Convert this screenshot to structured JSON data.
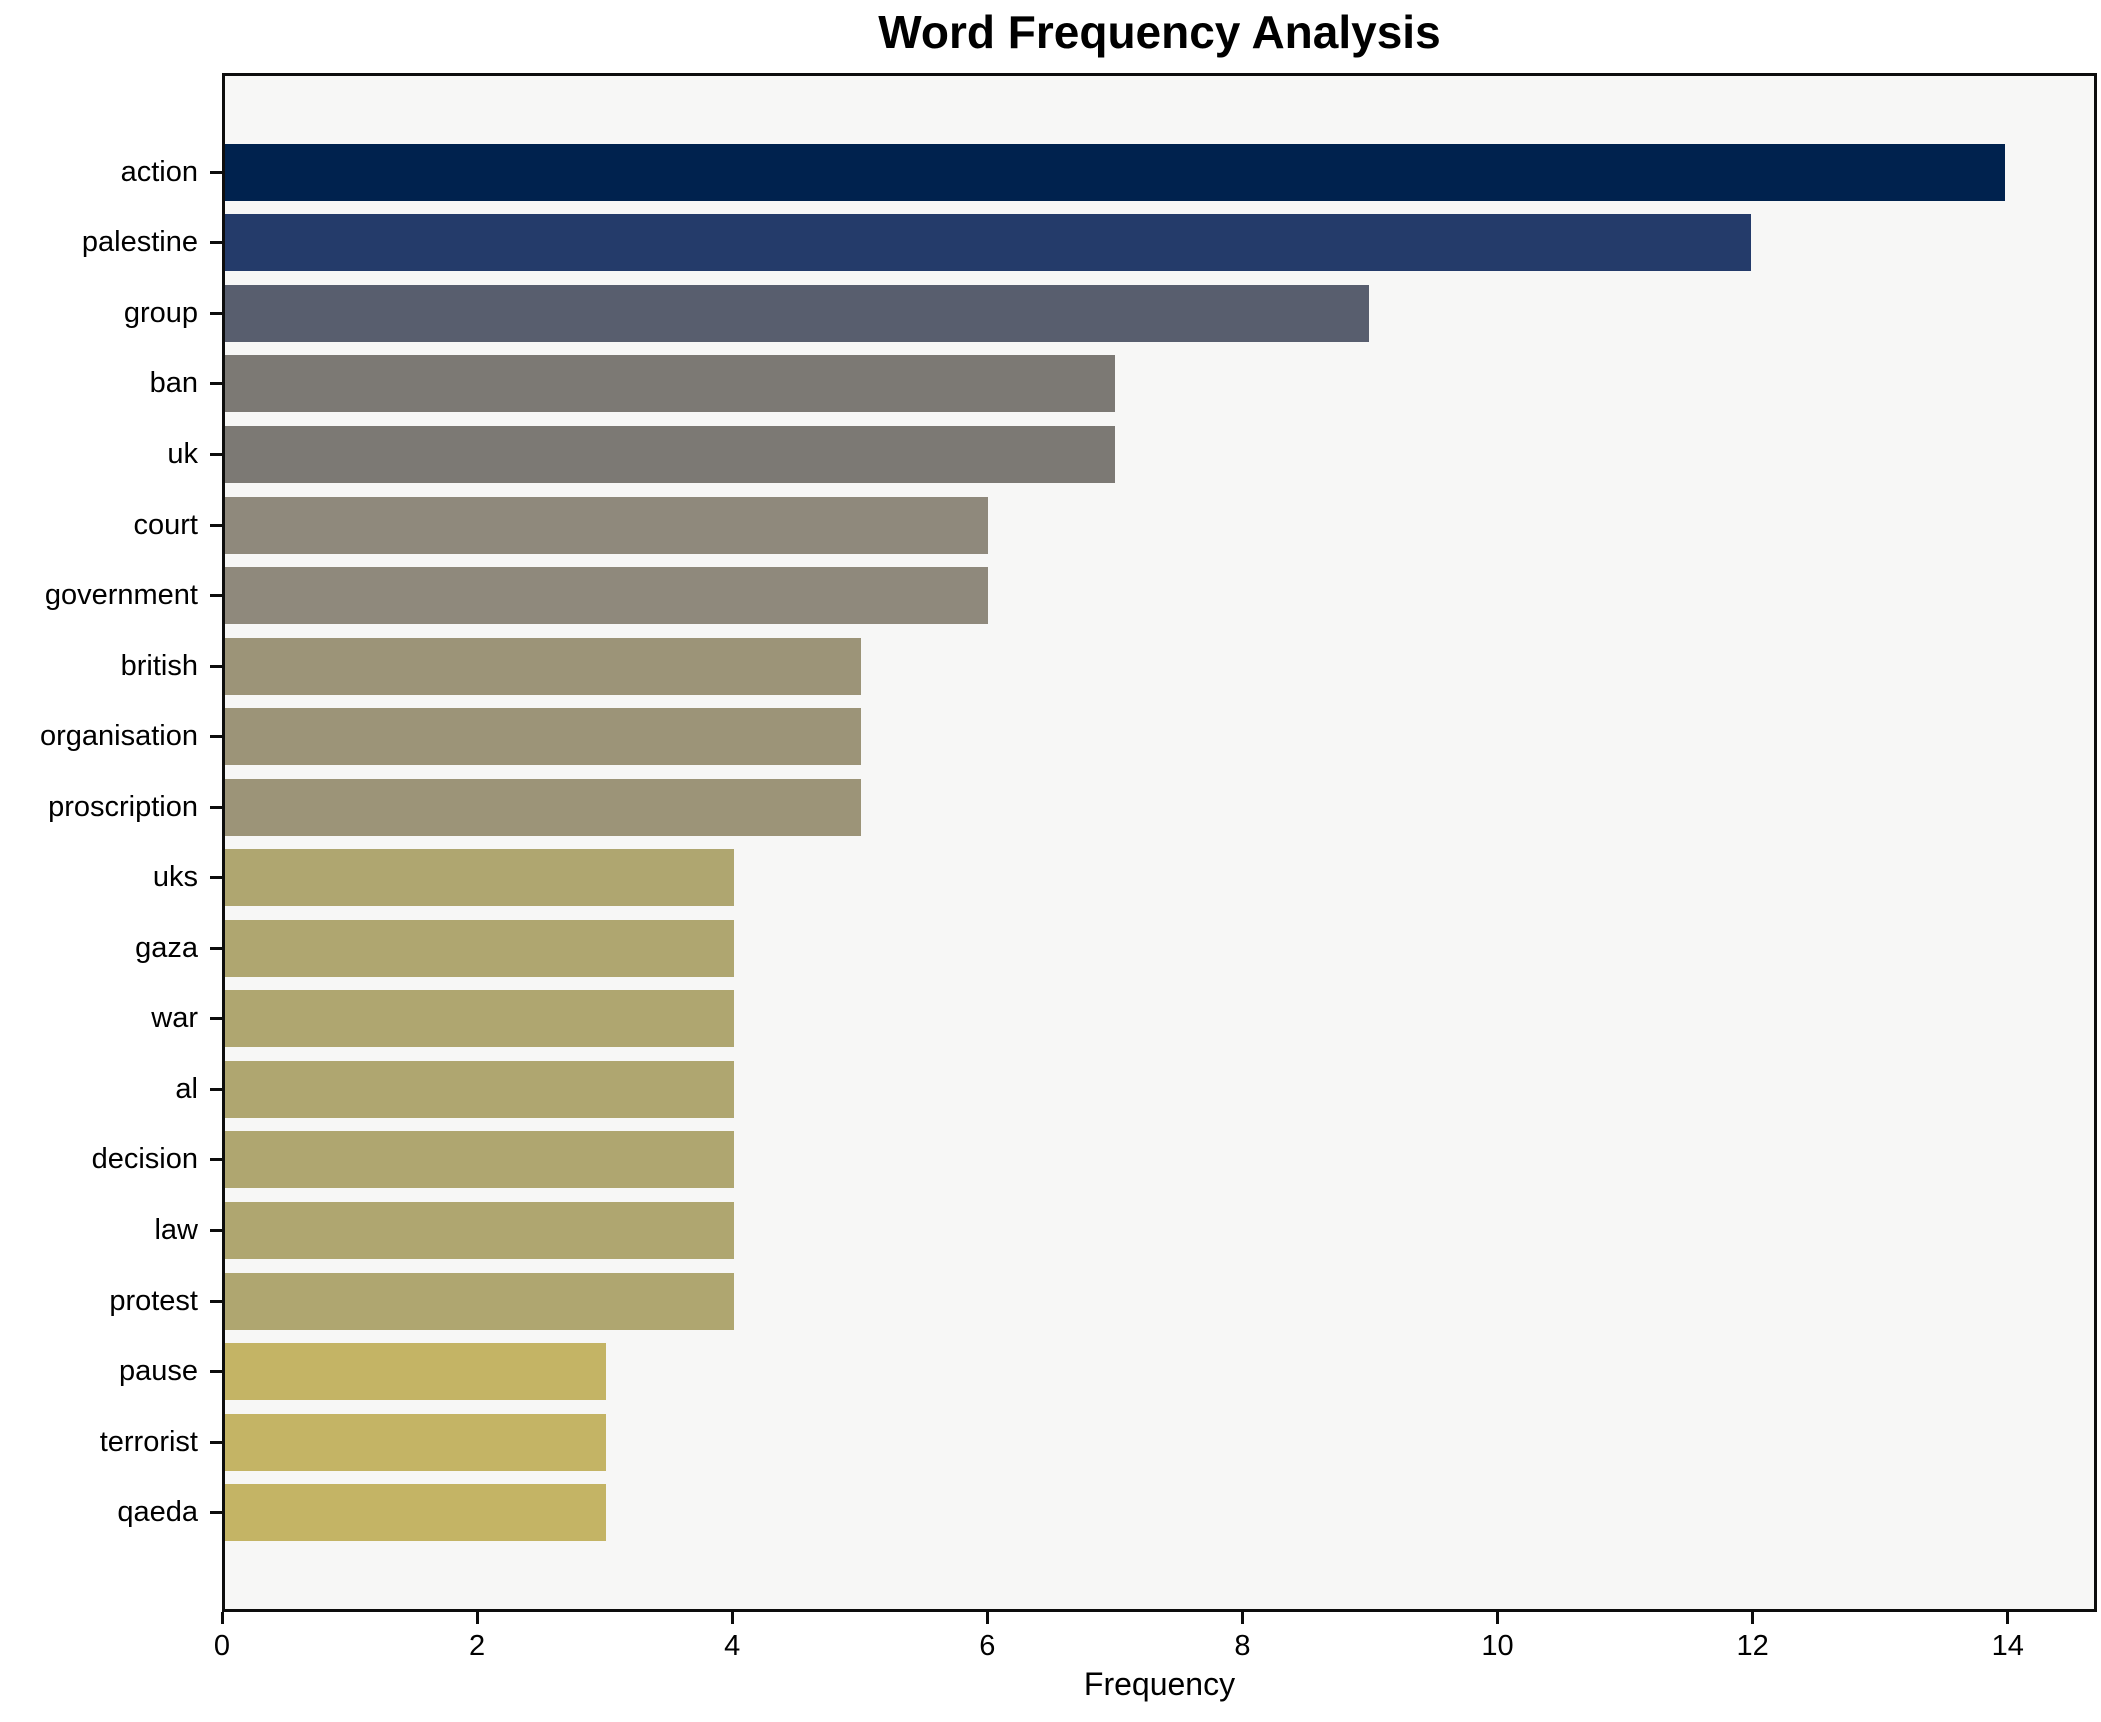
{
  "title": "Word Frequency Analysis",
  "colors": {
    "figure_background": "#ffffff",
    "plot_background": "#f7f7f6",
    "spine": "#0d0d0d",
    "text": "#000000"
  },
  "chart_data": {
    "type": "bar",
    "orientation": "horizontal",
    "title": "Word Frequency Analysis",
    "xlabel": "Frequency",
    "ylabel": "",
    "categories": [
      "action",
      "palestine",
      "group",
      "ban",
      "uk",
      "court",
      "government",
      "british",
      "organisation",
      "proscription",
      "uks",
      "gaza",
      "war",
      "al",
      "decision",
      "law",
      "protest",
      "pause",
      "terrorist",
      "qaeda"
    ],
    "values": [
      14,
      12,
      9,
      7,
      7,
      6,
      6,
      5,
      5,
      5,
      4,
      4,
      4,
      4,
      4,
      4,
      4,
      3,
      3,
      3
    ],
    "bar_colors": [
      "#00224e",
      "#243b6a",
      "#585e6e",
      "#7c7974",
      "#7c7974",
      "#8f897c",
      "#8f897c",
      "#9c9478",
      "#9c9478",
      "#9c9478",
      "#afa670",
      "#afa670",
      "#afa670",
      "#afa670",
      "#afa670",
      "#afa670",
      "#afa670",
      "#c4b465",
      "#c4b465",
      "#c4b465"
    ],
    "xlim": [
      0,
      14.7
    ],
    "xticks": [
      0,
      2,
      4,
      6,
      8,
      10,
      12,
      14
    ],
    "grid": false,
    "legend": null,
    "bar_color_note": "cividis colormap, dark navy (high freq) to khaki (low freq)"
  }
}
